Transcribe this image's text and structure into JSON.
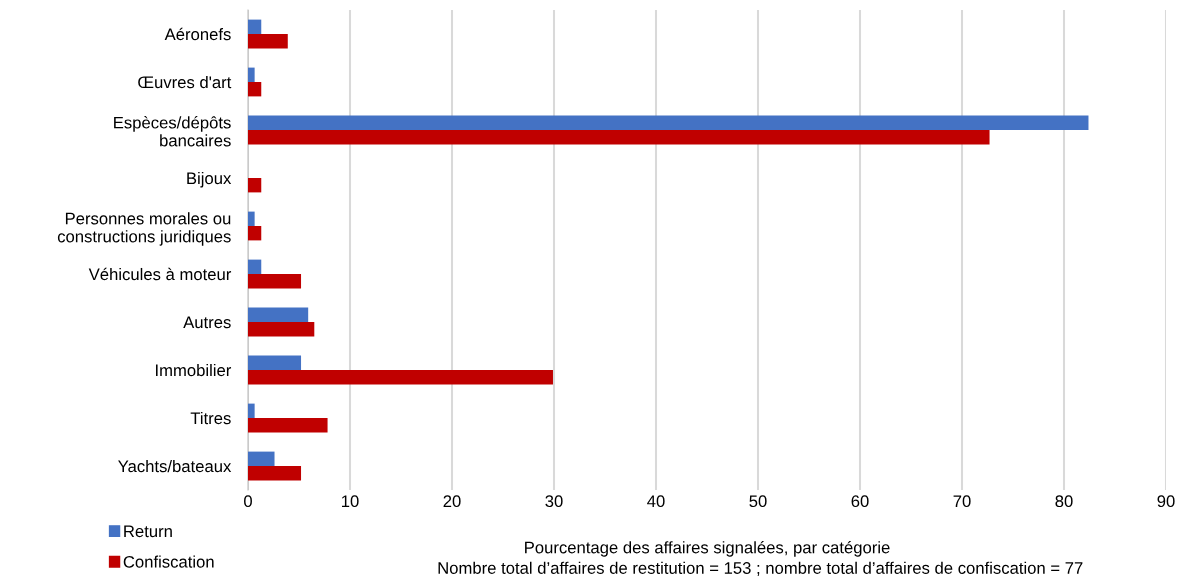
{
  "chart_data": {
    "type": "bar",
    "orientation": "horizontal",
    "xlabel": "Pourcentage des affaires signalées, par catégorie",
    "annotations": [
      "Nombre total d’affaires de restitution = 153 ; nombre total d’affaires de confiscation = 77"
    ],
    "categories": [
      "Aéronefs",
      "Œuvres d'art",
      "Espèces/dépôts\nbancaires",
      "Bijoux",
      "Personnes morales ou\nconstructions juridiques",
      "Véhicules à moteur",
      "Autres",
      "Immobilier",
      "Titres",
      "Yachts/bateaux"
    ],
    "series": [
      {
        "name": "Return",
        "color": "#4472c4",
        "values": [
          1.3,
          0.65,
          82.4,
          0,
          0.65,
          1.3,
          5.9,
          5.2,
          0.65,
          2.6
        ]
      },
      {
        "name": "Confiscation",
        "color": "#c00000",
        "values": [
          3.9,
          1.3,
          72.7,
          1.3,
          1.3,
          5.2,
          6.5,
          29.9,
          7.8,
          5.2
        ]
      }
    ],
    "xlim": [
      0,
      90
    ],
    "xticks": [
      0,
      10,
      20,
      30,
      40,
      50,
      60,
      70,
      80,
      90
    ],
    "grid": "x",
    "legend": "bottom left"
  }
}
